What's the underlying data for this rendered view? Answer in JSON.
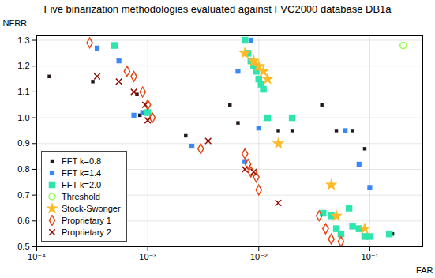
{
  "chart_data": {
    "type": "scatter",
    "title": "Five binarization methodologies evaluated against FVC2000 database DB1a",
    "xlabel": "FAR",
    "ylabel": "NFRR",
    "log": "x",
    "grid": true,
    "legend": "lower left",
    "xlim": [
      0.0001,
      0.3
    ],
    "xticks": [
      {
        "value": 0.0001,
        "label": "10⁻⁴"
      },
      {
        "value": 0.001,
        "label": "10⁻³"
      },
      {
        "value": 0.01,
        "label": "10⁻²"
      },
      {
        "value": 0.1,
        "label": "10⁻¹"
      }
    ],
    "ylim": [
      0.5,
      1.32
    ],
    "yticks": [
      0.5,
      0.6,
      0.7,
      0.8,
      0.9,
      {
        "value": 1.0,
        "label": "1.0"
      },
      1.1,
      1.2,
      1.3
    ],
    "series": [
      {
        "name": "FFT k=0.8",
        "marker": "square",
        "x": [
          0.00013,
          0.00032,
          0.0008,
          0.00085,
          0.0022,
          0.0055,
          0.0065,
          0.015,
          0.02,
          0.037,
          0.05,
          0.07,
          0.09,
          0.16
        ],
        "values": [
          1.16,
          1.14,
          1.09,
          1.01,
          0.93,
          1.05,
          0.98,
          0.95,
          0.95,
          1.05,
          0.95,
          0.95,
          0.88,
          0.55
        ]
      },
      {
        "name": "FFT k=1.4",
        "marker": "square",
        "x": [
          0.00035,
          0.00055,
          0.00075,
          0.0009,
          0.0025,
          0.0065,
          0.0075,
          0.0085,
          0.01,
          0.06,
          0.08,
          0.1
        ],
        "values": [
          1.27,
          1.22,
          1.01,
          1.02,
          0.89,
          1.18,
          0.83,
          1.3,
          0.96,
          0.95,
          0.82,
          0.73
        ]
      },
      {
        "name": "FFT k=2.0",
        "marker": "square",
        "x": [
          0.0005,
          0.001,
          0.0075,
          0.008,
          0.0085,
          0.009,
          0.0095,
          0.01,
          0.0105,
          0.011,
          0.012,
          0.02,
          0.038,
          0.045,
          0.05,
          0.055,
          0.065,
          0.07,
          0.08,
          0.09,
          0.1,
          0.15
        ],
        "values": [
          1.28,
          1.02,
          1.3,
          1.25,
          1.22,
          1.2,
          1.18,
          1.15,
          1.13,
          1.11,
          1.0,
          1.0,
          0.63,
          0.62,
          0.57,
          0.55,
          0.65,
          0.58,
          0.57,
          0.54,
          0.54,
          0.55
        ]
      },
      {
        "name": "Threshold",
        "marker": "circle",
        "x": [
          0.2
        ],
        "values": [
          1.28
        ]
      },
      {
        "name": "Stock-Swonger",
        "marker": "star",
        "x": [
          0.0075,
          0.009,
          0.01,
          0.011,
          0.012,
          0.015,
          0.045,
          0.05,
          0.09
        ],
        "values": [
          1.25,
          1.22,
          1.2,
          1.18,
          1.15,
          0.9,
          0.74,
          0.62,
          0.57
        ]
      },
      {
        "name": "Proprietary 1",
        "marker": "diamond",
        "x": [
          0.0003,
          0.00065,
          0.00075,
          0.0009,
          0.001,
          0.0011,
          0.003,
          0.0075,
          0.008,
          0.0085,
          0.0095,
          0.01,
          0.035,
          0.04,
          0.045,
          0.055
        ],
        "values": [
          1.29,
          1.18,
          1.16,
          1.1,
          1.05,
          1.0,
          0.88,
          0.86,
          0.82,
          0.79,
          0.77,
          0.72,
          0.62,
          0.57,
          0.53,
          0.52
        ]
      },
      {
        "name": "Proprietary 2",
        "marker": "x",
        "x": [
          0.00035,
          0.00055,
          0.00075,
          0.00095,
          0.001,
          0.0035,
          0.0075,
          0.009,
          0.015
        ],
        "values": [
          1.16,
          1.14,
          1.1,
          1.05,
          0.99,
          0.91,
          0.8,
          0.79,
          0.67
        ]
      }
    ]
  }
}
